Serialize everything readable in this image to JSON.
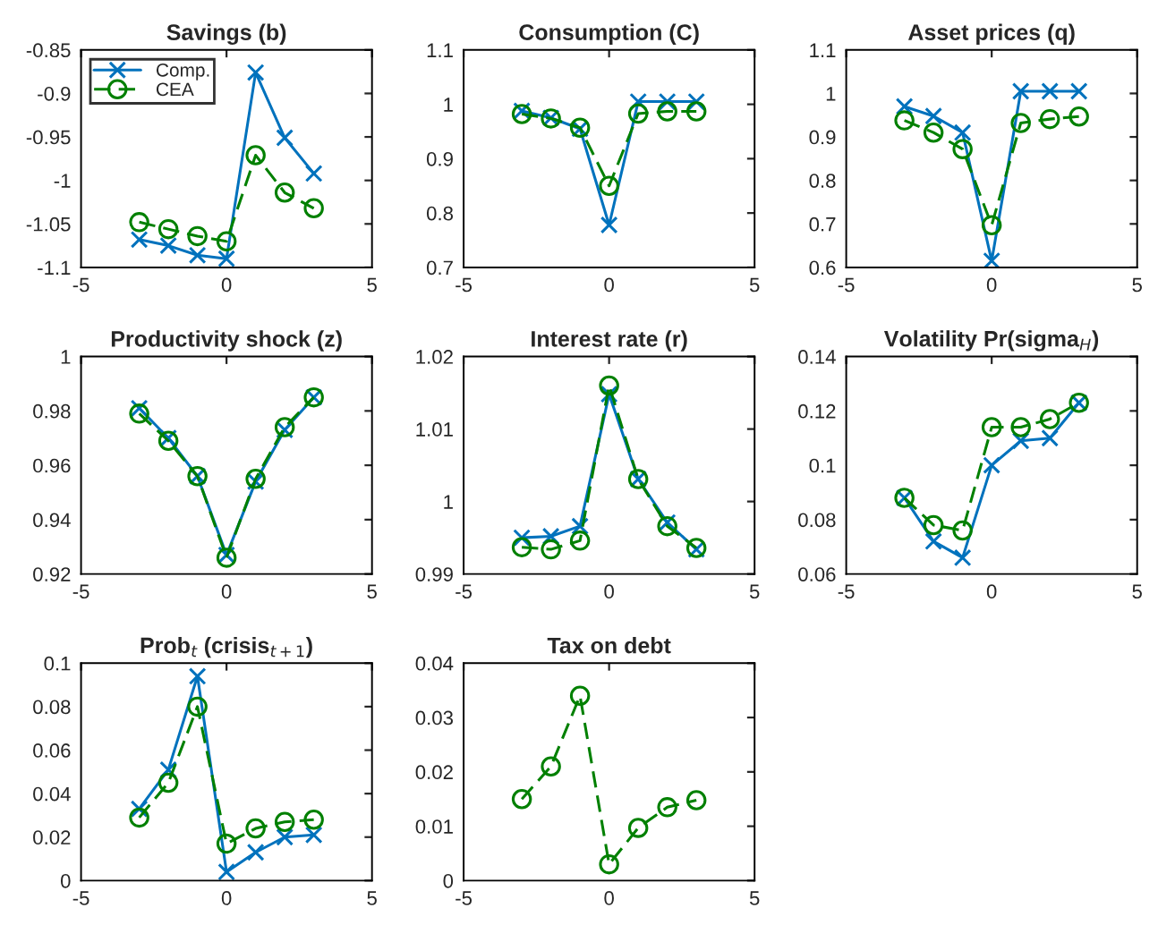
{
  "chart_data": [
    {
      "type": "line",
      "title": "Savings (b)",
      "x": [
        -3,
        -2,
        -1,
        0,
        1,
        2,
        3
      ],
      "xlim": [
        -5,
        5
      ],
      "xticks": [
        -5,
        0,
        5
      ],
      "ylim": [
        -1.1,
        -0.85
      ],
      "yticks": [
        -1.1,
        -1.05,
        -1,
        -0.95,
        -0.9,
        -0.85
      ],
      "legend": "top left",
      "series": [
        {
          "name": "Comp.",
          "color": "#0072bd",
          "marker": "cross",
          "line_style": "solid",
          "values": [
            -1.068,
            -1.075,
            -1.086,
            -1.09,
            -0.876,
            -0.951,
            -0.992
          ]
        },
        {
          "name": "CEA",
          "color": "#008000",
          "marker": "circle",
          "line_style": "dashed",
          "values": [
            -1.048,
            -1.056,
            -1.064,
            -1.07,
            -0.971,
            -1.014,
            -1.032
          ]
        }
      ]
    },
    {
      "type": "line",
      "title": "Consumption (C)",
      "x": [
        -3,
        -2,
        -1,
        0,
        1,
        2,
        3
      ],
      "xlim": [
        -5,
        5
      ],
      "xticks": [
        -5,
        0,
        5
      ],
      "ylim": [
        0.7,
        1.1
      ],
      "yticks": [
        0.7,
        0.8,
        0.9,
        1,
        1.1
      ],
      "series": [
        {
          "color": "#0072bd",
          "marker": "cross",
          "line_style": "solid",
          "values": [
            0.988,
            0.975,
            0.955,
            0.778,
            1.005,
            1.005,
            1.005
          ]
        },
        {
          "color": "#008000",
          "marker": "circle",
          "line_style": "dashed",
          "values": [
            0.982,
            0.974,
            0.957,
            0.85,
            0.983,
            0.987,
            0.987
          ]
        }
      ]
    },
    {
      "type": "line",
      "title": "Asset prices (q)",
      "x": [
        -3,
        -2,
        -1,
        0,
        1,
        2,
        3
      ],
      "xlim": [
        -5,
        5
      ],
      "xticks": [
        -5,
        0,
        5
      ],
      "ylim": [
        0.6,
        1.1
      ],
      "yticks": [
        0.6,
        0.7,
        0.8,
        0.9,
        1,
        1.1
      ],
      "series": [
        {
          "color": "#0072bd",
          "marker": "cross",
          "line_style": "solid",
          "values": [
            0.97,
            0.948,
            0.91,
            0.615,
            1.005,
            1.005,
            1.005
          ]
        },
        {
          "color": "#008000",
          "marker": "circle",
          "line_style": "dashed",
          "values": [
            0.938,
            0.91,
            0.872,
            0.697,
            0.932,
            0.941,
            0.947
          ]
        }
      ]
    },
    {
      "type": "line",
      "title": "Productivity shock (z)",
      "x": [
        -3,
        -2,
        -1,
        0,
        1,
        2,
        3
      ],
      "xlim": [
        -5,
        5
      ],
      "xticks": [
        -5,
        0,
        5
      ],
      "ylim": [
        0.92,
        1
      ],
      "yticks": [
        0.92,
        0.94,
        0.96,
        0.98,
        1
      ],
      "series": [
        {
          "color": "#0072bd",
          "marker": "cross",
          "line_style": "solid",
          "values": [
            0.981,
            0.97,
            0.956,
            0.927,
            0.954,
            0.973,
            0.985
          ]
        },
        {
          "color": "#008000",
          "marker": "circle",
          "line_style": "dashed",
          "values": [
            0.979,
            0.969,
            0.956,
            0.926,
            0.955,
            0.974,
            0.985
          ]
        }
      ]
    },
    {
      "type": "line",
      "title": "Interest rate (r)",
      "x": [
        -3,
        -2,
        -1,
        0,
        1,
        2,
        3
      ],
      "xlim": [
        -5,
        5
      ],
      "xticks": [
        -5,
        0,
        5
      ],
      "ylim": [
        0.99,
        1.02
      ],
      "yticks": [
        0.99,
        1,
        1.01,
        1.02
      ],
      "series": [
        {
          "color": "#0072bd",
          "marker": "cross",
          "line_style": "solid",
          "values": [
            0.995,
            0.9952,
            0.9966,
            1.0148,
            1.0031,
            0.9971,
            0.9934
          ]
        },
        {
          "color": "#008000",
          "marker": "circle",
          "line_style": "dashed",
          "values": [
            0.9937,
            0.9934,
            0.9946,
            1.016,
            1.0031,
            0.9966,
            0.9936
          ]
        }
      ]
    },
    {
      "type": "line",
      "title": "Volatility Pr(sigma$_{H}$)",
      "x": [
        -3,
        -2,
        -1,
        0,
        1,
        2,
        3
      ],
      "xlim": [
        -5,
        5
      ],
      "xticks": [
        -5,
        0,
        5
      ],
      "ylim": [
        0.06,
        0.14
      ],
      "yticks": [
        0.06,
        0.08,
        0.1,
        0.12,
        0.14
      ],
      "series": [
        {
          "color": "#0072bd",
          "marker": "cross",
          "line_style": "solid",
          "values": [
            0.088,
            0.072,
            0.066,
            0.1,
            0.109,
            0.11,
            0.123
          ]
        },
        {
          "color": "#008000",
          "marker": "circle",
          "line_style": "dashed",
          "values": [
            0.088,
            0.078,
            0.076,
            0.114,
            0.114,
            0.117,
            0.123
          ]
        }
      ]
    },
    {
      "type": "line",
      "title": "Prob$_{t}$ (crisis$_{t+1}$)",
      "x": [
        -3,
        -2,
        -1,
        0,
        1,
        2,
        3
      ],
      "xlim": [
        -5,
        5
      ],
      "xticks": [
        -5,
        0,
        5
      ],
      "ylim": [
        0,
        0.1
      ],
      "yticks": [
        0,
        0.02,
        0.04,
        0.06,
        0.08,
        0.1
      ],
      "series": [
        {
          "color": "#0072bd",
          "marker": "cross",
          "line_style": "solid",
          "values": [
            0.033,
            0.051,
            0.094,
            0.004,
            0.013,
            0.02,
            0.021
          ]
        },
        {
          "color": "#008000",
          "marker": "circle",
          "line_style": "dashed",
          "values": [
            0.029,
            0.045,
            0.08,
            0.017,
            0.024,
            0.027,
            0.028
          ]
        }
      ]
    },
    {
      "type": "line",
      "title": "Tax on debt",
      "x": [
        -3,
        -2,
        -1,
        0,
        1,
        2,
        3
      ],
      "xlim": [
        -5,
        5
      ],
      "xticks": [
        -5,
        0,
        5
      ],
      "ylim": [
        0,
        0.04
      ],
      "yticks": [
        0,
        0.01,
        0.02,
        0.03,
        0.04
      ],
      "series": [
        {
          "color": "#008000",
          "marker": "circle",
          "line_style": "dashed",
          "values": [
            0.015,
            0.021,
            0.034,
            0.003,
            0.0097,
            0.0135,
            0.0148
          ]
        }
      ]
    }
  ]
}
